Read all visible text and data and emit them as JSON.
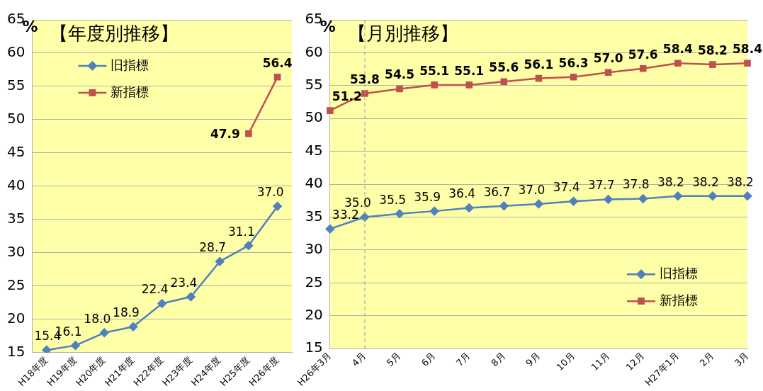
{
  "chart_data": [
    {
      "type": "line",
      "title": "【年度別推移】",
      "ylabel": "%",
      "categories": [
        "H18年度",
        "H19年度",
        "H20年度",
        "H21年度",
        "H22年度",
        "H23年度",
        "H24年度",
        "H25年度",
        "H26年度"
      ],
      "series": [
        {
          "name": "旧指標",
          "color": "#4f81bd",
          "marker": "diamond",
          "values": [
            15.4,
            16.1,
            18.0,
            18.9,
            22.4,
            23.4,
            28.7,
            31.1,
            37.0
          ],
          "value_labels": [
            "15.4",
            "16.1",
            "18.0",
            "18.9",
            "22.4",
            "23.4",
            "28.7",
            "31.1",
            "37.0"
          ]
        },
        {
          "name": "新指標",
          "color": "#c0504d",
          "marker": "square",
          "values": [
            null,
            null,
            null,
            null,
            null,
            null,
            null,
            47.9,
            56.4
          ],
          "value_labels": [
            null,
            null,
            null,
            null,
            null,
            null,
            null,
            "47.9",
            "56.4"
          ]
        }
      ],
      "ylim": [
        15,
        65
      ],
      "yticks": [
        15,
        20,
        25,
        30,
        35,
        40,
        45,
        50,
        55,
        60,
        65
      ],
      "grid": "y",
      "legend": "top left"
    },
    {
      "type": "line",
      "title": "【月別推移】",
      "ylabel": "%",
      "categories": [
        "H26年3月",
        "4月",
        "5月",
        "6月",
        "7月",
        "8月",
        "9月",
        "10月",
        "11月",
        "12月",
        "H27年1月",
        "2月",
        "3月"
      ],
      "series": [
        {
          "name": "旧指標",
          "color": "#4f81bd",
          "marker": "diamond",
          "values": [
            33.2,
            35.0,
            35.5,
            35.9,
            36.4,
            36.7,
            37.0,
            37.4,
            37.7,
            37.8,
            38.2,
            38.2,
            38.2
          ],
          "value_labels": [
            "33.2",
            "35.0",
            "35.5",
            "35.9",
            "36.4",
            "36.7",
            "37.0",
            "37.4",
            "37.7",
            "37.8",
            "38.2",
            "38.2",
            "38.2"
          ]
        },
        {
          "name": "新指標",
          "color": "#c0504d",
          "marker": "square",
          "values": [
            51.2,
            53.8,
            54.5,
            55.1,
            55.1,
            55.6,
            56.1,
            56.3,
            57.0,
            57.6,
            58.4,
            58.2,
            58.4
          ],
          "value_labels": [
            "51.2",
            "53.8",
            "54.5",
            "55.1",
            "55.1",
            "55.6",
            "56.1",
            "56.3",
            "57.0",
            "57.6",
            "58.4",
            "58.2",
            "58.4"
          ]
        }
      ],
      "ylim": [
        15,
        65
      ],
      "yticks": [
        15,
        20,
        25,
        30,
        35,
        40,
        45,
        50,
        55,
        60,
        65
      ],
      "grid": "y",
      "legend": "bottom right",
      "ref_lines": [
        {
          "axis": "x",
          "value": "4月",
          "line_style": "dashed",
          "color": "#a0a0a0"
        }
      ]
    }
  ]
}
